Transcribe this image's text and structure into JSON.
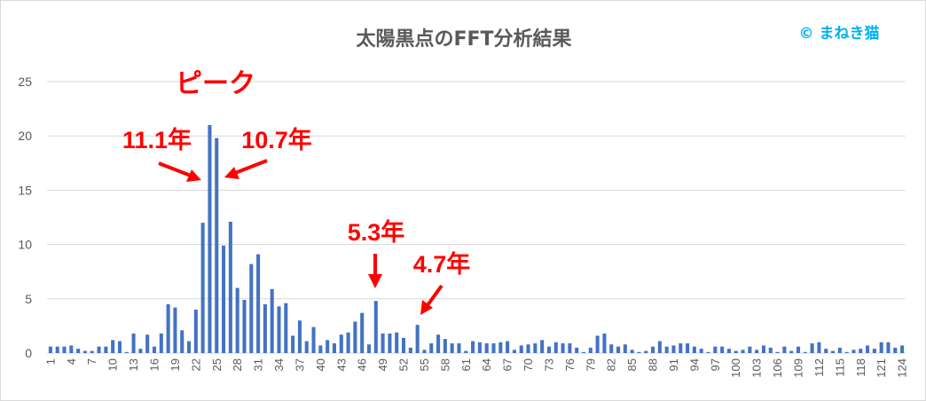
{
  "chart_data": {
    "type": "bar",
    "title": "太陽黒点のFFT分析結果",
    "credit": "© まねき猫",
    "xlabel": "",
    "ylabel": "",
    "ylim": [
      0,
      25
    ],
    "yticks": [
      0,
      5,
      10,
      15,
      20,
      25
    ],
    "xtick_step": 3,
    "grid": true,
    "color": "#4472c4",
    "categories": [
      1,
      2,
      3,
      4,
      5,
      6,
      7,
      8,
      9,
      10,
      11,
      12,
      13,
      14,
      15,
      16,
      17,
      18,
      19,
      20,
      21,
      22,
      23,
      24,
      25,
      26,
      27,
      28,
      29,
      30,
      31,
      32,
      33,
      34,
      35,
      36,
      37,
      38,
      39,
      40,
      41,
      42,
      43,
      44,
      45,
      46,
      47,
      48,
      49,
      50,
      51,
      52,
      53,
      54,
      55,
      56,
      57,
      58,
      59,
      60,
      61,
      62,
      63,
      64,
      65,
      66,
      67,
      68,
      69,
      70,
      71,
      72,
      73,
      74,
      75,
      76,
      77,
      78,
      79,
      80,
      81,
      82,
      83,
      84,
      85,
      86,
      87,
      88,
      89,
      90,
      91,
      92,
      93,
      94,
      95,
      96,
      97,
      98,
      99,
      100,
      101,
      102,
      103,
      104,
      105,
      106,
      107,
      108,
      109,
      110,
      111,
      112,
      113,
      114,
      115,
      116,
      117,
      118,
      119,
      120,
      121,
      122,
      123,
      124
    ],
    "values": [
      0.6,
      0.6,
      0.6,
      0.7,
      0.4,
      0.2,
      0.2,
      0.6,
      0.6,
      1.2,
      1.1,
      0.1,
      1.8,
      0.4,
      1.7,
      0.6,
      1.8,
      4.5,
      4.2,
      2.1,
      1.1,
      4.0,
      12.0,
      21.0,
      19.8,
      9.9,
      12.1,
      6.0,
      4.9,
      8.2,
      9.1,
      4.5,
      5.9,
      4.3,
      4.6,
      1.6,
      3.0,
      1.1,
      2.4,
      0.7,
      1.2,
      0.9,
      1.7,
      1.9,
      2.9,
      3.7,
      0.8,
      4.8,
      1.8,
      1.8,
      1.9,
      1.4,
      0.5,
      2.6,
      0.3,
      0.9,
      1.7,
      1.3,
      0.9,
      0.9,
      0.2,
      1.1,
      1.0,
      0.9,
      0.9,
      1.0,
      1.1,
      0.3,
      0.7,
      0.8,
      0.9,
      1.2,
      0.6,
      1.0,
      0.9,
      0.9,
      0.5,
      0.1,
      0.5,
      1.6,
      1.8,
      0.8,
      0.6,
      0.8,
      0.3,
      0.1,
      0.2,
      0.6,
      1.1,
      0.6,
      0.7,
      0.9,
      0.9,
      0.6,
      0.4,
      0.1,
      0.6,
      0.6,
      0.4,
      0.2,
      0.3,
      0.6,
      0.3,
      0.7,
      0.5,
      0.1,
      0.6,
      0.2,
      0.6,
      0.1,
      0.9,
      1.0,
      0.4,
      0.2,
      0.5,
      0.1,
      0.3,
      0.4,
      0.7,
      0.4,
      1.0,
      1.0,
      0.5,
      0.7
    ]
  },
  "annotations": {
    "peak_label": "ピーク",
    "labels": [
      "11.1年",
      "10.7年",
      "5.3年",
      "4.7年"
    ]
  }
}
